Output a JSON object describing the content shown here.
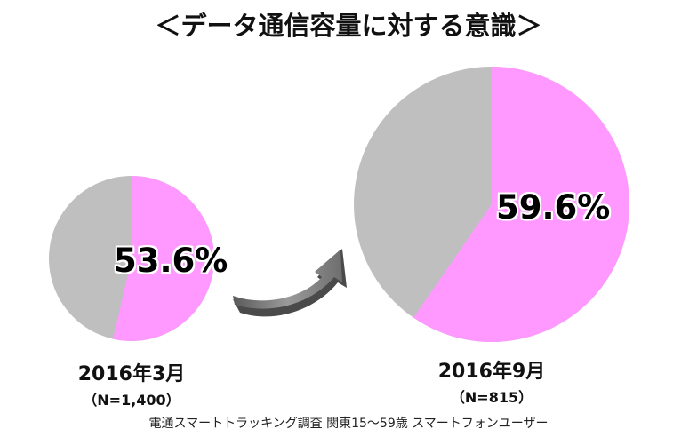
{
  "title": "＜データ通信容量に対する意識＞",
  "source_note": "電通スマートトラッキング調査 関東15～59歳 スマートフォンユーザー",
  "colors": {
    "highlight": "#FF99FF",
    "rest": "#BFBFBF",
    "arrow": "#7F7F7F"
  },
  "pies": [
    {
      "period": "2016年3月",
      "sample": "（N=1,400）",
      "value": 53.6,
      "value_label": "53.6%"
    },
    {
      "period": "2016年9月",
      "sample": "（N=815）",
      "value": 59.6,
      "value_label": "59.6%"
    }
  ],
  "chart_data": {
    "type": "pie",
    "title": "＜データ通信容量に対する意識＞",
    "subtitle": "電通スマートトラッキング調査 関東15～59歳 スマートフォンユーザー",
    "charts": [
      {
        "label": "2016年3月",
        "n": 1400,
        "slices": [
          {
            "name": "highlighted",
            "value": 53.6,
            "color": "#FF99FF"
          },
          {
            "name": "other",
            "value": 46.4,
            "color": "#BFBFBF"
          }
        ]
      },
      {
        "label": "2016年9月",
        "n": 815,
        "slices": [
          {
            "name": "highlighted",
            "value": 59.6,
            "color": "#FF99FF"
          },
          {
            "name": "other",
            "value": 40.4,
            "color": "#BFBFBF"
          }
        ]
      }
    ],
    "annotations": [
      "53.6%",
      "59.6%",
      "arrow indicating increase from March to September 2016"
    ]
  }
}
